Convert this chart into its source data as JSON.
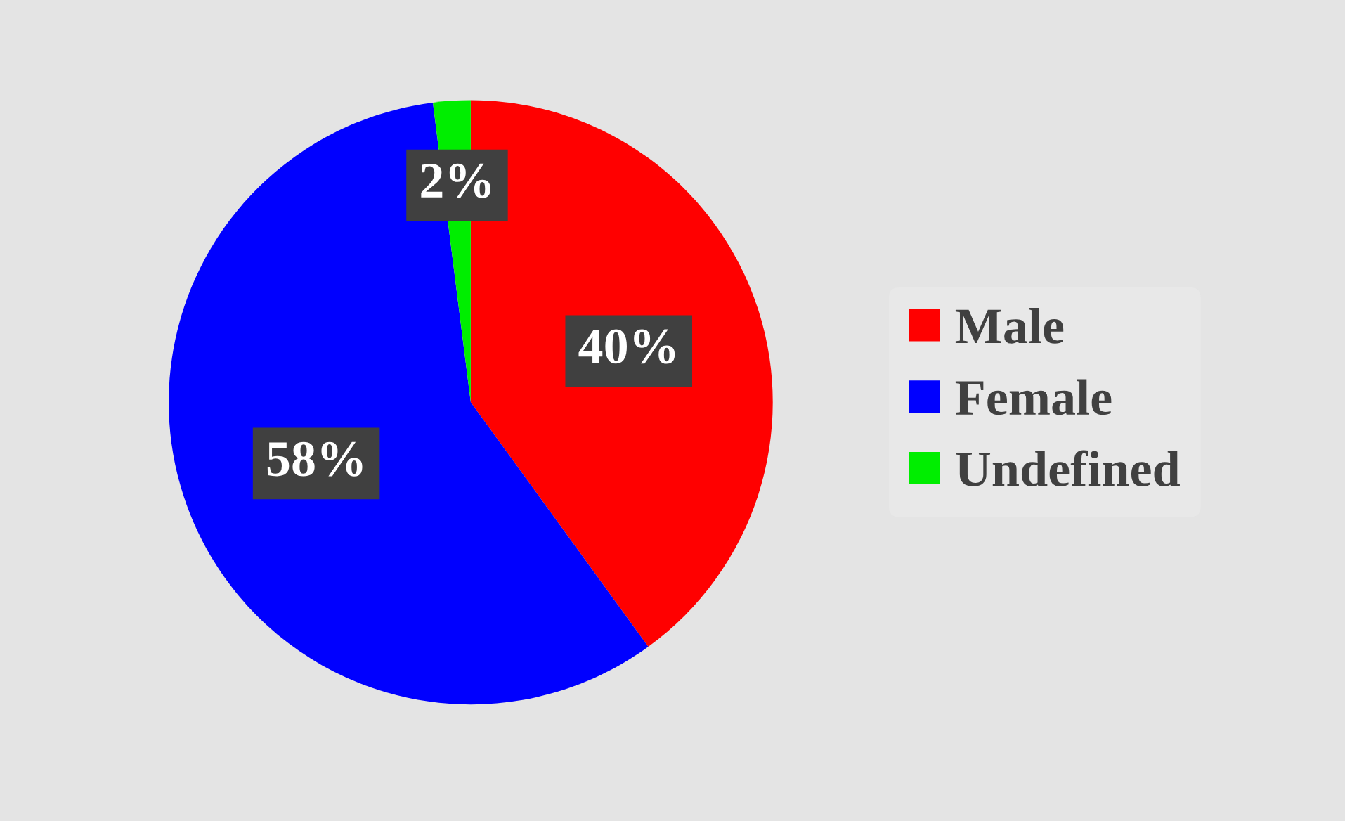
{
  "chart_data": {
    "type": "pie",
    "categories": [
      "Male",
      "Female",
      "Undefined"
    ],
    "values": [
      40,
      58,
      2
    ],
    "colors": [
      "#ff0000",
      "#0000ff",
      "#00ee00"
    ],
    "value_labels": [
      "40%",
      "58%",
      "2%"
    ],
    "legend": "right"
  }
}
